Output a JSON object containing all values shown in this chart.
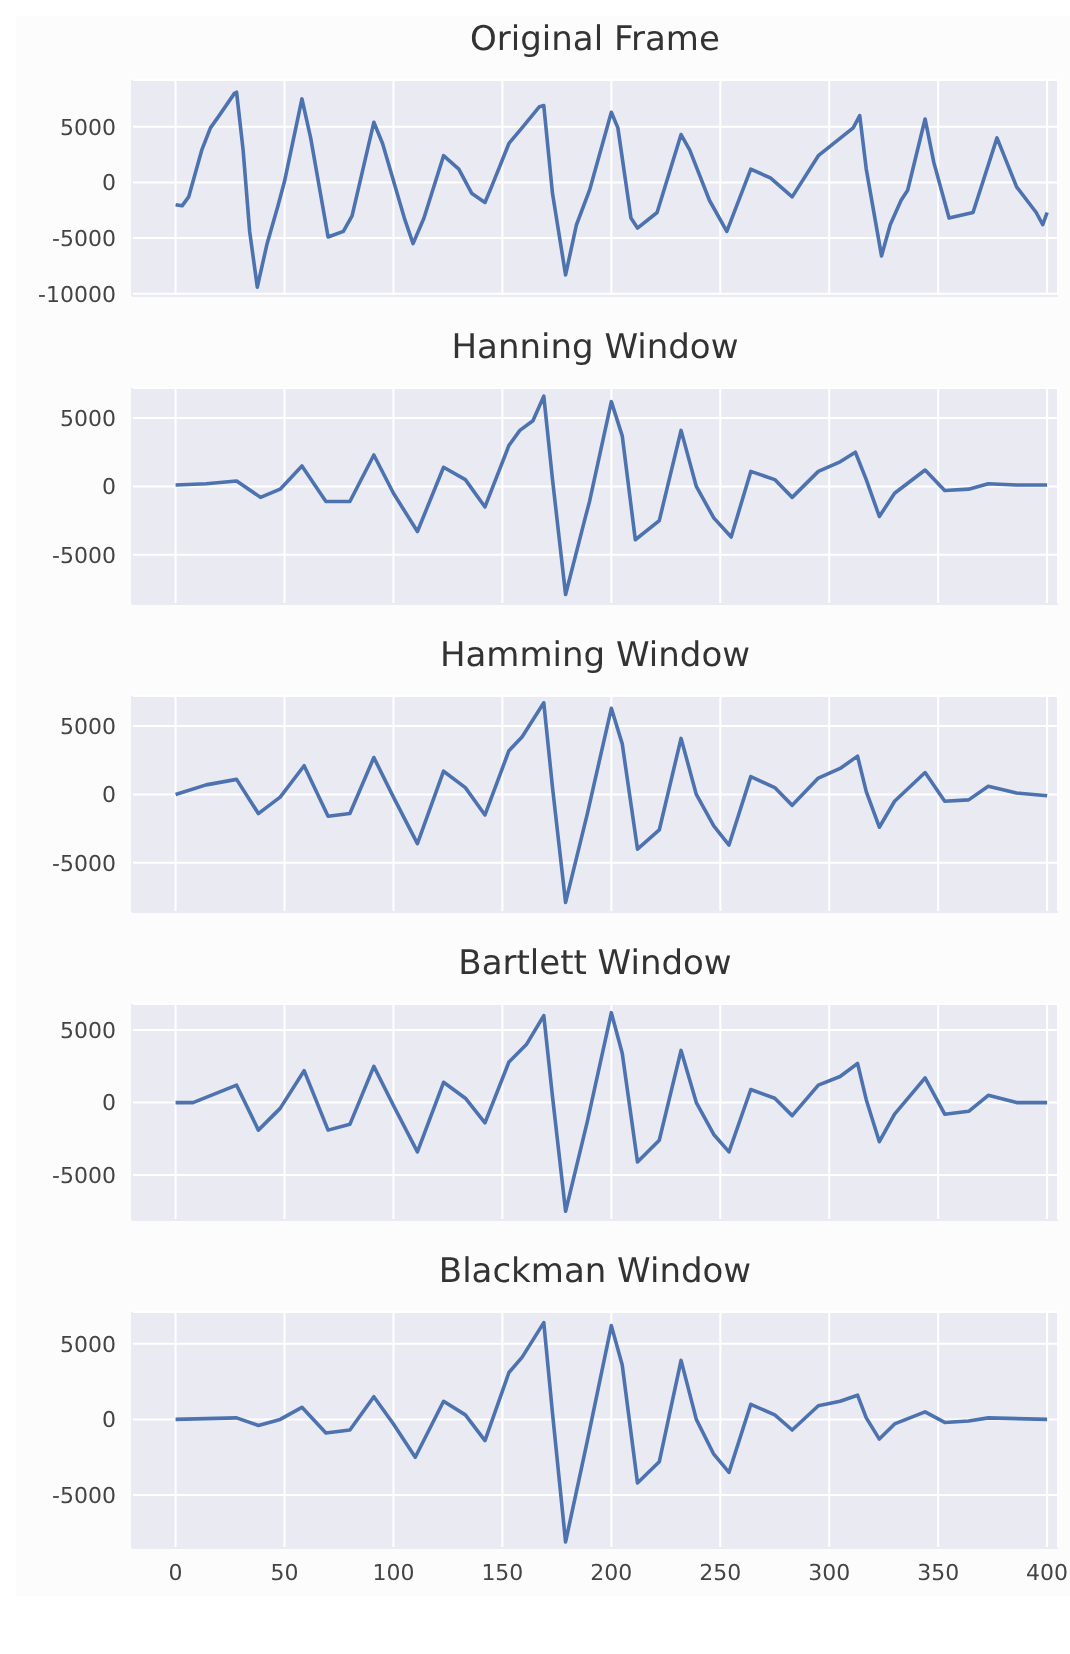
{
  "chart_data": [
    {
      "type": "line",
      "title": "Original Frame",
      "color": "#4c72b0",
      "grid": true,
      "tick_labels": "y",
      "xlim": [
        -20,
        405
      ],
      "xticks": [
        0,
        50,
        100,
        150,
        200,
        250,
        300,
        350,
        400
      ],
      "ylim": [
        -10200,
        9200
      ],
      "yticks": [
        -10000,
        -5000,
        0,
        5000
      ],
      "x": [
        0,
        3,
        6,
        12,
        16,
        20,
        27,
        28,
        31,
        34,
        37.5,
        42,
        47,
        50,
        58,
        62,
        70,
        77,
        81,
        91,
        95,
        105,
        109,
        114,
        123,
        130,
        136,
        142,
        145,
        153,
        159,
        167,
        169,
        173,
        179,
        184,
        190,
        200,
        203,
        209,
        212,
        221,
        232,
        236,
        245,
        253,
        264,
        273,
        283,
        295,
        311,
        314,
        317,
        324,
        328,
        333,
        336,
        344,
        348,
        355,
        366,
        377,
        386,
        395,
        398,
        400
      ],
      "values": [
        -2000,
        -2100,
        -1300,
        2900,
        4900,
        6000,
        8000,
        8100,
        2900,
        -4400,
        -9400,
        -5500,
        -2100,
        100,
        7500,
        4000,
        -4900,
        -4400,
        -3000,
        5400,
        3500,
        -3200,
        -5500,
        -3200,
        2400,
        1200,
        -1000,
        -1800,
        -400,
        3500,
        4900,
        6800,
        6900,
        -1000,
        -8300,
        -3800,
        -700,
        6300,
        4900,
        -3200,
        -4100,
        -2700,
        4300,
        2900,
        -1600,
        -4400,
        1200,
        400,
        -1300,
        2400,
        4900,
        6000,
        1200,
        -6600,
        -3800,
        -1600,
        -700,
        5700,
        1800,
        -3200,
        -2700,
        4000,
        -400,
        -2700,
        -3800,
        -2700
      ]
    },
    {
      "type": "line",
      "title": "Hanning Window",
      "color": "#4c72b0",
      "grid": true,
      "tick_labels": "y",
      "xlim": [
        -20,
        405
      ],
      "xticks": [
        0,
        50,
        100,
        150,
        200,
        250,
        300,
        350,
        400
      ],
      "ylim": [
        -8600,
        7200
      ],
      "yticks": [
        -5000,
        0,
        5000
      ],
      "x": [
        0,
        14,
        28,
        39,
        48,
        58,
        69,
        80,
        91,
        100,
        111,
        123,
        133,
        142,
        153,
        158,
        164,
        169,
        173,
        179,
        188,
        190,
        200,
        205,
        211,
        222,
        232,
        239,
        247,
        255,
        264,
        275,
        283,
        295,
        305,
        312,
        317,
        323,
        330,
        344,
        353,
        364,
        373,
        386,
        400
      ],
      "values": [
        100,
        200,
        400,
        -800,
        -200,
        1500,
        -1100,
        -1100,
        2300,
        -500,
        -3300,
        1400,
        500,
        -1500,
        3000,
        4100,
        4800,
        6600,
        500,
        -7900,
        -2300,
        -1100,
        6200,
        3700,
        -3900,
        -2500,
        4100,
        0,
        -2300,
        -3700,
        1100,
        500,
        -800,
        1100,
        1800,
        2500,
        500,
        -2200,
        -500,
        1200,
        -300,
        -200,
        200,
        100,
        100
      ]
    },
    {
      "type": "line",
      "title": "Hamming Window",
      "color": "#4c72b0",
      "grid": true,
      "tick_labels": "y",
      "xlim": [
        -20,
        405
      ],
      "xticks": [
        0,
        50,
        100,
        150,
        200,
        250,
        300,
        350,
        400
      ],
      "ylim": [
        -8600,
        7200
      ],
      "yticks": [
        -5000,
        0,
        5000
      ],
      "x": [
        0,
        14,
        28,
        38,
        48,
        59,
        70,
        80,
        91,
        100,
        111,
        123,
        133,
        142,
        153,
        159,
        169,
        173,
        179,
        189,
        200,
        205,
        212,
        222,
        232,
        239,
        247,
        254,
        264,
        275,
        283,
        295,
        305,
        313,
        317,
        323,
        330,
        344,
        353,
        364,
        373,
        386,
        400
      ],
      "values": [
        0,
        700,
        1100,
        -1400,
        -200,
        2100,
        -1600,
        -1400,
        2700,
        -200,
        -3600,
        1700,
        500,
        -1500,
        3200,
        4200,
        6700,
        500,
        -7900,
        -1400,
        6300,
        3700,
        -4000,
        -2600,
        4100,
        0,
        -2300,
        -3700,
        1300,
        500,
        -800,
        1200,
        1900,
        2800,
        200,
        -2400,
        -500,
        1600,
        -500,
        -400,
        600,
        100,
        -100
      ]
    },
    {
      "type": "line",
      "title": "Bartlett Window",
      "color": "#4c72b0",
      "grid": true,
      "tick_labels": "y",
      "xlim": [
        -20,
        405
      ],
      "xticks": [
        0,
        50,
        100,
        150,
        200,
        250,
        300,
        350,
        400
      ],
      "ylim": [
        -8100,
        6800
      ],
      "yticks": [
        -5000,
        0,
        5000
      ],
      "x": [
        0,
        8,
        28,
        38,
        48,
        59,
        70,
        80,
        91,
        100,
        111,
        123,
        133,
        142,
        153,
        161,
        169,
        173,
        179,
        189,
        200,
        205,
        212,
        222,
        232,
        239,
        247,
        254,
        264,
        275,
        283,
        295,
        305,
        313,
        317,
        323,
        330,
        344,
        353,
        364,
        373,
        386,
        400
      ],
      "values": [
        0,
        0,
        1200,
        -1900,
        -400,
        2200,
        -1900,
        -1500,
        2500,
        -200,
        -3400,
        1400,
        300,
        -1400,
        2800,
        4000,
        6000,
        400,
        -7500,
        -1300,
        6200,
        3400,
        -4100,
        -2600,
        3600,
        0,
        -2200,
        -3400,
        900,
        300,
        -900,
        1200,
        1800,
        2700,
        200,
        -2700,
        -800,
        1700,
        -800,
        -600,
        500,
        0,
        0
      ]
    },
    {
      "type": "line",
      "title": "Blackman Window",
      "color": "#4c72b0",
      "grid": true,
      "xlim": [
        -20,
        405
      ],
      "xticks": [
        0,
        50,
        100,
        150,
        200,
        250,
        300,
        350,
        400
      ],
      "ylim": [
        -8500,
        7100
      ],
      "yticks": [
        -5000,
        0,
        5000
      ],
      "x": [
        0,
        28,
        38,
        48,
        58,
        69,
        80,
        91,
        100,
        110,
        123,
        133,
        142,
        153,
        159,
        169,
        173,
        179,
        189,
        200,
        205,
        212,
        222,
        232,
        239,
        247,
        254,
        264,
        275,
        283,
        295,
        305,
        313,
        317,
        323,
        330,
        344,
        353,
        364,
        373,
        400
      ],
      "values": [
        0,
        100,
        -400,
        0,
        800,
        -900,
        -700,
        1500,
        -300,
        -2500,
        1200,
        300,
        -1400,
        3100,
        4100,
        6400,
        400,
        -8100,
        -1400,
        6200,
        3600,
        -4200,
        -2800,
        3900,
        0,
        -2300,
        -3500,
        1000,
        300,
        -700,
        900,
        1200,
        1600,
        100,
        -1300,
        -300,
        500,
        -200,
        -100,
        100,
        0
      ]
    }
  ]
}
